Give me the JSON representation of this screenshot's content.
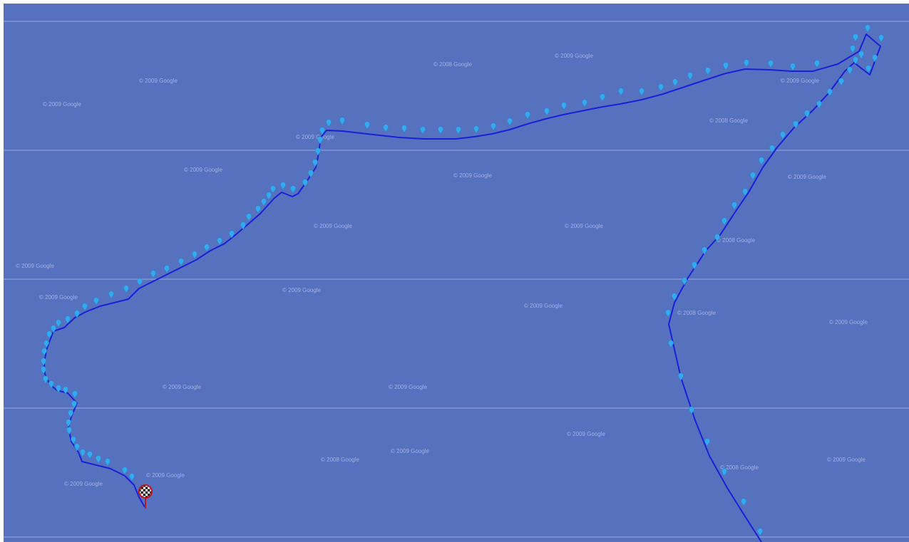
{
  "map": {
    "water_color": "#5672bf",
    "tile_line_color": "#9aa9dc",
    "track_color": "#1a1fd8",
    "marker_color": "#33aaf0",
    "finish_icon": "checkered-flag-icon"
  },
  "watermark_text": "© 2009 Google",
  "watermark_alt_text": "© 2008 Google"
}
